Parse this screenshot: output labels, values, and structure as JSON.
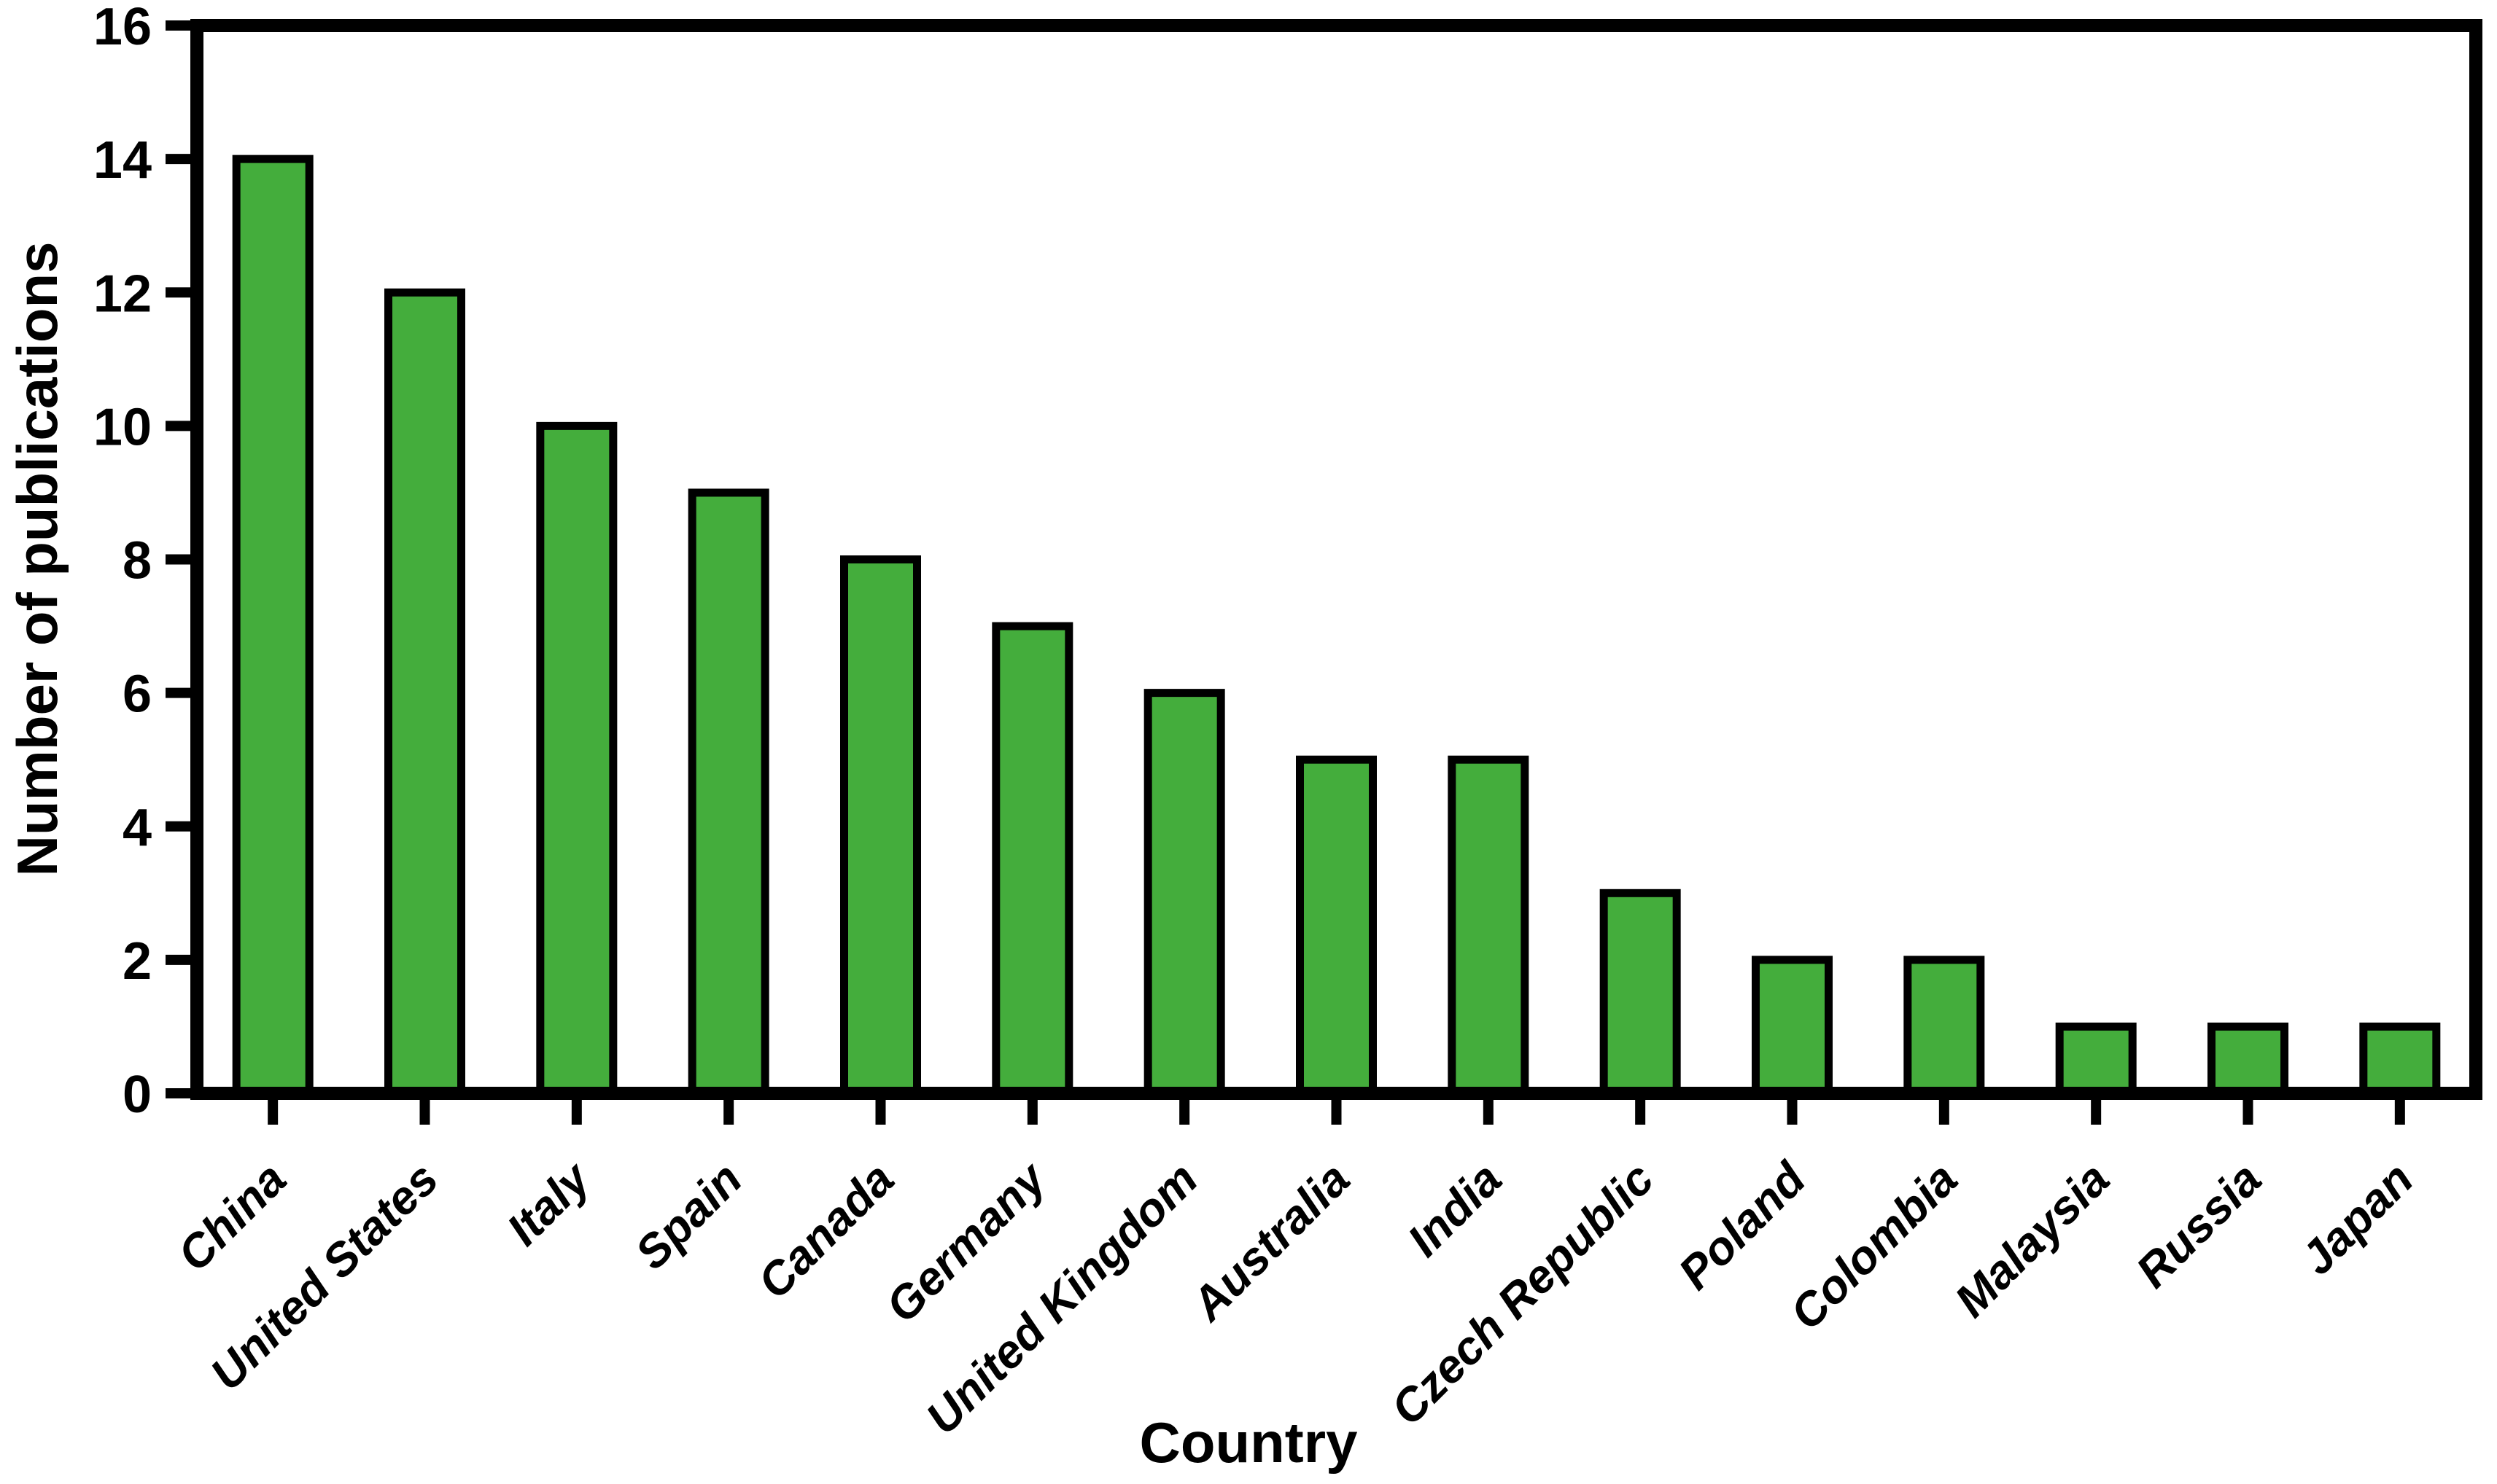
{
  "chart_data": {
    "type": "bar",
    "title": "",
    "xlabel": "Country",
    "ylabel": "Number of publications",
    "categories": [
      "China",
      "United States",
      "Italy",
      "Spain",
      "Canada",
      "Germany",
      "United Kingdom",
      "Australia",
      "India",
      "Czech Republic",
      "Poland",
      "Colombia",
      "Malaysia",
      "Russia",
      "Japan"
    ],
    "values": [
      14,
      12,
      10,
      9,
      8,
      7,
      6,
      5,
      5,
      3,
      2,
      2,
      1,
      1,
      1
    ],
    "ylim": [
      0,
      16
    ],
    "yticks": [
      0,
      2,
      4,
      6,
      8,
      10,
      12,
      14,
      16
    ],
    "grid": false,
    "legend_position": "none",
    "x_tick_label_rotation_deg": 45,
    "colors": {
      "bar_fill": "#44AD3C",
      "bar_edge": "#000000",
      "axis": "#000000",
      "text": "#000000",
      "background": "#FFFFFF"
    }
  }
}
